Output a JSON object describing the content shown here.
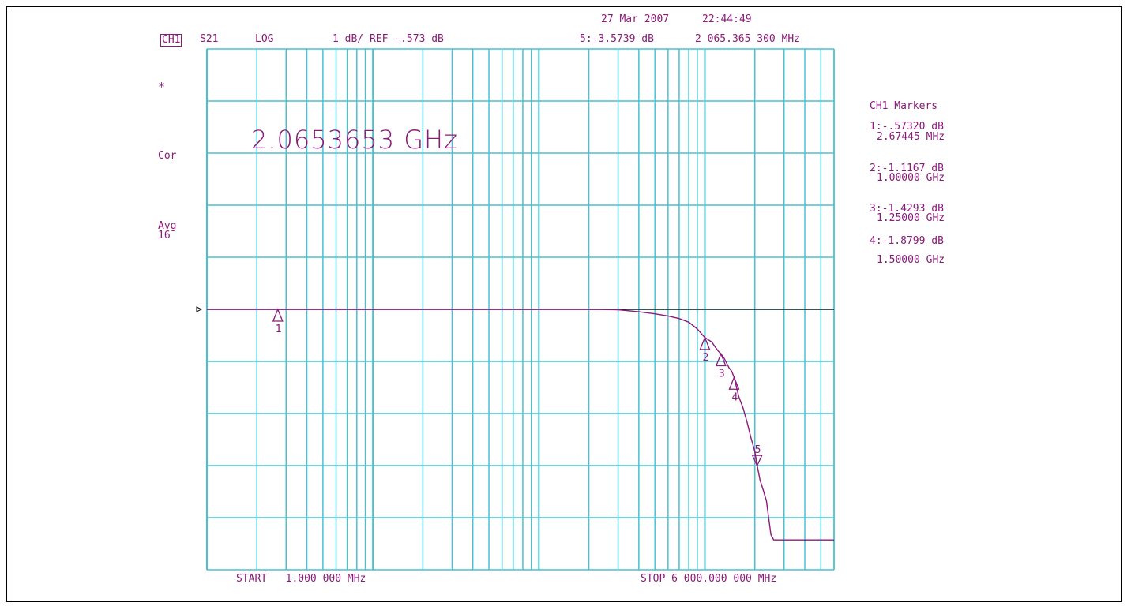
{
  "header": {
    "date": "27 Mar 2007",
    "time": "22:44:49",
    "channel": "CH1",
    "parameter": "S21",
    "format": "LOG",
    "scale": "1 dB/ REF -.573 dB",
    "active_marker": "5:-3.5739 dB",
    "active_marker_freq": "2 065.365 300 MHz"
  },
  "side_labels": {
    "star": "*",
    "cor": "Cor",
    "avg": "Avg",
    "avg_count": "16"
  },
  "marker_readout": "2.0653653 GHz",
  "markers_panel": {
    "title": "CH1 Markers",
    "m1_value": "1:-.57320 dB",
    "m1_freq": "2.67445 MHz",
    "m2_value": "2:-1.1167 dB",
    "m2_freq": "1.00000 GHz",
    "m3_value": "3:-1.4293 dB",
    "m3_freq": "1.25000 GHz",
    "m4_value": "4:-1.8799 dB",
    "m4_freq": "1.50000 GHz"
  },
  "footer": {
    "start": "START   1.000 000 MHz",
    "stop": "STOP 6 000.000 000 MHz"
  },
  "colors": {
    "grid": "#49c2d0",
    "trace": "#8b1a7a",
    "text": "#8b1a7a",
    "reference": "#000000",
    "floor": "#3a4fb0"
  },
  "chart_data": {
    "type": "line",
    "x_scale": "log",
    "x_unit": "MHz",
    "xlim": [
      1,
      6000
    ],
    "y_unit": "dB",
    "y_reference": -0.573,
    "y_per_division": 1,
    "reference_division": 5,
    "grid": true,
    "series": [
      {
        "x": [
          1,
          2.67445,
          5,
          10,
          30,
          60,
          100,
          200,
          300,
          400,
          500,
          600,
          700,
          800,
          900,
          1000,
          1100,
          1150,
          1200,
          1250,
          1300,
          1350,
          1400,
          1450,
          1500,
          1600,
          1700,
          1800,
          1900,
          2000,
          2065.3653,
          2150,
          2250,
          2350,
          2500,
          2600,
          2700,
          6000
        ],
        "y": [
          -0.573,
          -0.5732,
          -0.573,
          -0.573,
          -0.573,
          -0.573,
          -0.573,
          -0.573,
          -0.58,
          -0.62,
          -0.66,
          -0.7,
          -0.75,
          -0.82,
          -0.95,
          -1.1167,
          -1.2,
          -1.29,
          -1.37,
          -1.4293,
          -1.5,
          -1.6,
          -1.7,
          -1.76,
          -1.8799,
          -2.25,
          -2.47,
          -2.75,
          -3.05,
          -3.3,
          -3.5739,
          -3.85,
          -4.05,
          -4.25,
          -4.9,
          -5.0,
          -5.0,
          -5.0
        ]
      }
    ],
    "markers": [
      {
        "label": "1",
        "x": 2.67445,
        "y": -0.5732,
        "direction": "up"
      },
      {
        "label": "2",
        "x": 1000,
        "y": -1.1167,
        "direction": "up"
      },
      {
        "label": "3",
        "x": 1250,
        "y": -1.4293,
        "direction": "up"
      },
      {
        "label": "4",
        "x": 1500,
        "y": -1.8799,
        "direction": "up"
      },
      {
        "label": "5",
        "x": 2065.3653,
        "y": -3.5739,
        "direction": "down"
      }
    ]
  }
}
